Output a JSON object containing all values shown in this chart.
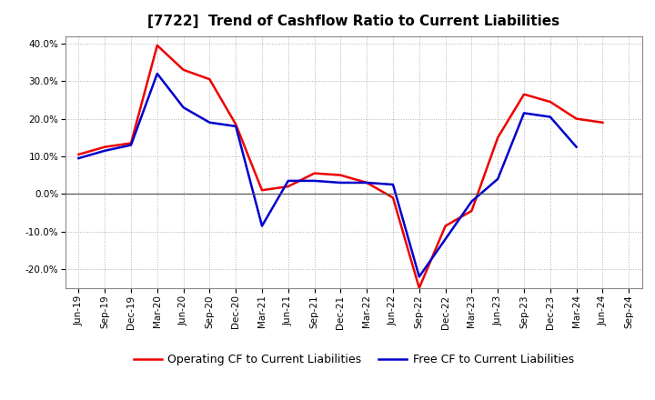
{
  "title": "[7722]  Trend of Cashflow Ratio to Current Liabilities",
  "x_labels": [
    "Jun-19",
    "Sep-19",
    "Dec-19",
    "Mar-20",
    "Jun-20",
    "Sep-20",
    "Dec-20",
    "Mar-21",
    "Jun-21",
    "Sep-21",
    "Dec-21",
    "Mar-22",
    "Jun-22",
    "Sep-22",
    "Dec-22",
    "Mar-23",
    "Jun-23",
    "Sep-23",
    "Dec-23",
    "Mar-24",
    "Jun-24",
    "Sep-24"
  ],
  "operating_cf": [
    10.5,
    12.5,
    13.5,
    39.5,
    33.0,
    30.5,
    18.5,
    1.0,
    2.0,
    5.5,
    5.0,
    3.0,
    -1.0,
    -25.0,
    -8.5,
    -4.5,
    15.0,
    26.5,
    24.5,
    20.0,
    19.0,
    null
  ],
  "free_cf": [
    9.5,
    11.5,
    13.0,
    32.0,
    23.0,
    19.0,
    18.0,
    -8.5,
    3.5,
    3.5,
    3.0,
    3.0,
    2.5,
    -22.0,
    -12.0,
    -2.0,
    4.0,
    21.5,
    20.5,
    12.5,
    null,
    null
  ],
  "operating_color": "#ee0000",
  "free_color": "#0000cc",
  "ylim": [
    -25,
    42
  ],
  "yticks": [
    -20.0,
    -10.0,
    0.0,
    10.0,
    20.0,
    30.0,
    40.0
  ],
  "legend_operating": "Operating CF to Current Liabilities",
  "legend_free": "Free CF to Current Liabilities",
  "background_color": "#ffffff",
  "grid_color": "#b0b0b0",
  "title_fontsize": 11,
  "tick_fontsize": 7.5,
  "legend_fontsize": 9
}
